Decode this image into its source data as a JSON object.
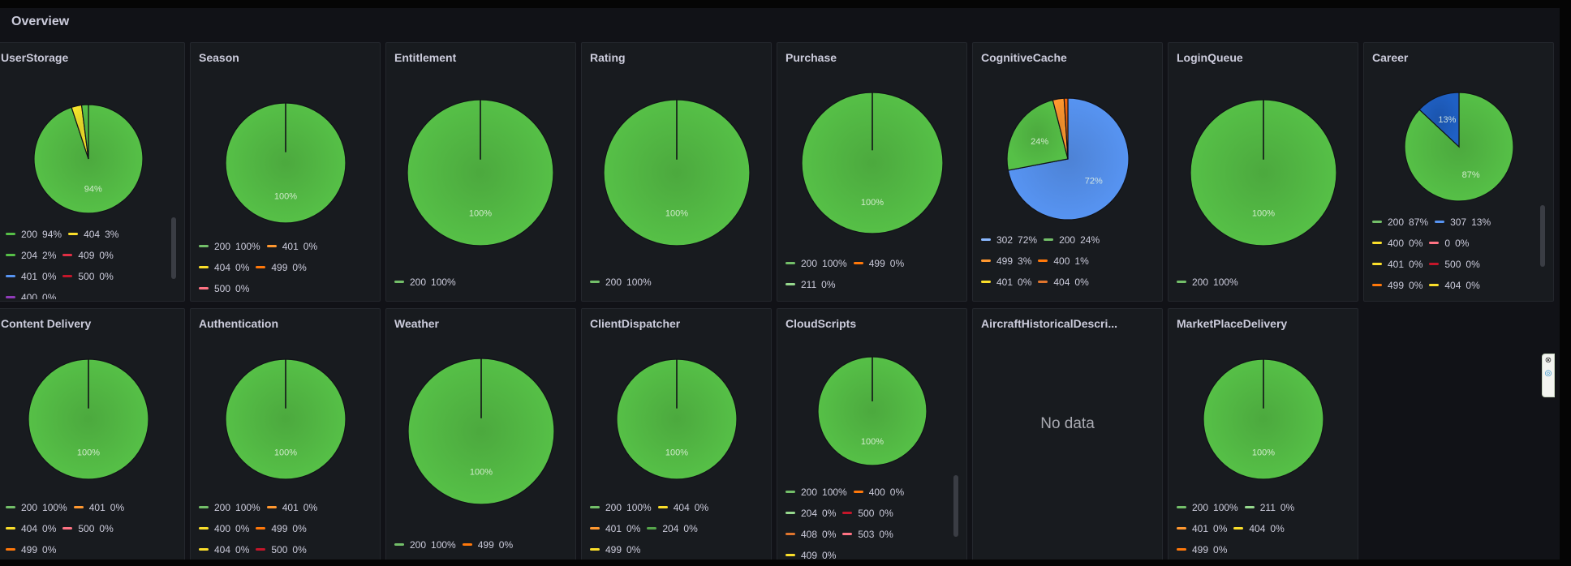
{
  "section": {
    "title": "Overview"
  },
  "no_data_text": "No data",
  "edge_widget": {
    "top": "⊗",
    "bottom": "◎"
  },
  "panels": [
    {
      "title": "UserStorage",
      "pie": [
        {
          "label": "200",
          "value": 94,
          "color": "#56c047",
          "slice_label": "94%"
        },
        {
          "label": "404",
          "value": 3,
          "color": "#f5e42c"
        },
        {
          "label": "204",
          "value": 2,
          "color": "#56c047"
        },
        {
          "label": "409",
          "value": 0,
          "color": "#e02f44"
        },
        {
          "label": "401",
          "value": 0,
          "color": "#5794f2"
        },
        {
          "label": "500",
          "value": 0,
          "color": "#c4162a"
        }
      ],
      "legend": [
        [
          {
            "label": "200",
            "value": "94%",
            "color": "#56c047"
          },
          {
            "label": "404",
            "value": "3%",
            "color": "#fade2a"
          }
        ],
        [
          {
            "label": "204",
            "value": "2%",
            "color": "#56c047"
          },
          {
            "label": "409",
            "value": "0%",
            "color": "#e02f44"
          }
        ],
        [
          {
            "label": "401",
            "value": "0%",
            "color": "#5794f2"
          },
          {
            "label": "500",
            "value": "0%",
            "color": "#c4162a"
          }
        ],
        [
          {
            "label": "400",
            "value": "0%",
            "color": "#8f3bb8"
          }
        ]
      ],
      "scrollbar": true
    },
    {
      "title": "Season",
      "pie": [
        {
          "label": "200",
          "value": 100,
          "color": "#56c047",
          "slice_label": "100%"
        },
        {
          "label": "401",
          "value": 0,
          "color": "#ff780a"
        }
      ],
      "legend": [
        [
          {
            "label": "200",
            "value": "100%",
            "color": "#73bf69"
          },
          {
            "label": "401",
            "value": "0%",
            "color": "#ff9830"
          }
        ],
        [
          {
            "label": "404",
            "value": "0%",
            "color": "#fade2a"
          },
          {
            "label": "499",
            "value": "0%",
            "color": "#ff780a"
          }
        ],
        [
          {
            "label": "500",
            "value": "0%",
            "color": "#ff7383"
          }
        ]
      ]
    },
    {
      "title": "Entitlement",
      "pie": [
        {
          "label": "200",
          "value": 100,
          "color": "#56c047",
          "slice_label": "100%"
        }
      ],
      "legend": [
        [
          {
            "label": "200",
            "value": "100%",
            "color": "#73bf69"
          }
        ]
      ]
    },
    {
      "title": "Rating",
      "pie": [
        {
          "label": "200",
          "value": 100,
          "color": "#56c047",
          "slice_label": "100%"
        }
      ],
      "legend": [
        [
          {
            "label": "200",
            "value": "100%",
            "color": "#73bf69"
          }
        ]
      ]
    },
    {
      "title": "Purchase",
      "pie": [
        {
          "label": "200",
          "value": 100,
          "color": "#56c047",
          "slice_label": "100%"
        },
        {
          "label": "499",
          "value": 0,
          "color": "#ff780a"
        }
      ],
      "legend": [
        [
          {
            "label": "200",
            "value": "100%",
            "color": "#73bf69"
          },
          {
            "label": "499",
            "value": "0%",
            "color": "#ff780a"
          }
        ],
        [
          {
            "label": "211",
            "value": "0%",
            "color": "#96d98d"
          }
        ]
      ]
    },
    {
      "title": "CognitiveCache",
      "pie": [
        {
          "label": "302",
          "value": 72,
          "color": "#5794f2",
          "slice_label": "72%"
        },
        {
          "label": "200",
          "value": 24,
          "color": "#56c047",
          "slice_label": "24%"
        },
        {
          "label": "499",
          "value": 3,
          "color": "#ff9830"
        },
        {
          "label": "400",
          "value": 1,
          "color": "#f2640a"
        }
      ],
      "legend": [
        [
          {
            "label": "302",
            "value": "72%",
            "color": "#8ab8ff"
          },
          {
            "label": "200",
            "value": "24%",
            "color": "#73bf69"
          }
        ],
        [
          {
            "label": "499",
            "value": "3%",
            "color": "#ff9830"
          },
          {
            "label": "400",
            "value": "1%",
            "color": "#ff780a"
          }
        ],
        [
          {
            "label": "401",
            "value": "0%",
            "color": "#fade2a"
          },
          {
            "label": "404",
            "value": "0%",
            "color": "#e0752d"
          }
        ]
      ]
    },
    {
      "title": "LoginQueue",
      "pie": [
        {
          "label": "200",
          "value": 100,
          "color": "#56c047",
          "slice_label": "100%"
        }
      ],
      "legend": [
        [
          {
            "label": "200",
            "value": "100%",
            "color": "#73bf69"
          }
        ]
      ]
    },
    {
      "title": "Career",
      "pie": [
        {
          "label": "200",
          "value": 87,
          "color": "#56c047",
          "slice_label": "87%"
        },
        {
          "label": "307",
          "value": 13,
          "color": "#1f60c4",
          "slice_label": "13%"
        }
      ],
      "legend": [
        [
          {
            "label": "200",
            "value": "87%",
            "color": "#73bf69"
          },
          {
            "label": "307",
            "value": "13%",
            "color": "#5794f2"
          }
        ],
        [
          {
            "label": "400",
            "value": "0%",
            "color": "#fade2a"
          },
          {
            "label": "0",
            "value": "0%",
            "color": "#ff7383"
          }
        ],
        [
          {
            "label": "401",
            "value": "0%",
            "color": "#fade2a"
          },
          {
            "label": "500",
            "value": "0%",
            "color": "#c4162a"
          }
        ],
        [
          {
            "label": "499",
            "value": "0%",
            "color": "#ff780a"
          },
          {
            "label": "404",
            "value": "0%",
            "color": "#fade2a"
          }
        ]
      ],
      "scrollbar": true
    },
    {
      "title": "Content Delivery",
      "pie": [
        {
          "label": "200",
          "value": 100,
          "color": "#56c047",
          "slice_label": "100%"
        },
        {
          "label": "401",
          "value": 0,
          "color": "#ff9830"
        }
      ],
      "legend": [
        [
          {
            "label": "200",
            "value": "100%",
            "color": "#73bf69"
          },
          {
            "label": "401",
            "value": "0%",
            "color": "#ff9830"
          }
        ],
        [
          {
            "label": "404",
            "value": "0%",
            "color": "#fade2a"
          },
          {
            "label": "500",
            "value": "0%",
            "color": "#ff7383"
          }
        ],
        [
          {
            "label": "499",
            "value": "0%",
            "color": "#ff780a"
          }
        ]
      ]
    },
    {
      "title": "Authentication",
      "pie": [
        {
          "label": "200",
          "value": 100,
          "color": "#56c047",
          "slice_label": "100%"
        },
        {
          "label": "401",
          "value": 0,
          "color": "#ff9830"
        }
      ],
      "legend": [
        [
          {
            "label": "200",
            "value": "100%",
            "color": "#73bf69"
          },
          {
            "label": "401",
            "value": "0%",
            "color": "#ff9830"
          }
        ],
        [
          {
            "label": "400",
            "value": "0%",
            "color": "#fade2a"
          },
          {
            "label": "499",
            "value": "0%",
            "color": "#ff780a"
          }
        ],
        [
          {
            "label": "404",
            "value": "0%",
            "color": "#fade2a"
          },
          {
            "label": "500",
            "value": "0%",
            "color": "#c4162a"
          }
        ]
      ]
    },
    {
      "title": "Weather",
      "pie": [
        {
          "label": "200",
          "value": 100,
          "color": "#56c047",
          "slice_label": "100%"
        },
        {
          "label": "499",
          "value": 0,
          "color": "#ff780a"
        }
      ],
      "legend": [
        [
          {
            "label": "200",
            "value": "100%",
            "color": "#73bf69"
          },
          {
            "label": "499",
            "value": "0%",
            "color": "#ff780a"
          }
        ]
      ]
    },
    {
      "title": "ClientDispatcher",
      "pie": [
        {
          "label": "200",
          "value": 100,
          "color": "#56c047",
          "slice_label": "100%"
        },
        {
          "label": "404",
          "value": 0,
          "color": "#fade2a"
        }
      ],
      "legend": [
        [
          {
            "label": "200",
            "value": "100%",
            "color": "#73bf69"
          },
          {
            "label": "404",
            "value": "0%",
            "color": "#fade2a"
          }
        ],
        [
          {
            "label": "401",
            "value": "0%",
            "color": "#ff9830"
          },
          {
            "label": "204",
            "value": "0%",
            "color": "#56a64b"
          }
        ],
        [
          {
            "label": "499",
            "value": "0%",
            "color": "#fade2a"
          }
        ]
      ]
    },
    {
      "title": "CloudScripts",
      "pie": [
        {
          "label": "200",
          "value": 100,
          "color": "#56c047",
          "slice_label": "100%"
        },
        {
          "label": "400",
          "value": 0,
          "color": "#ff780a"
        }
      ],
      "legend": [
        [
          {
            "label": "200",
            "value": "100%",
            "color": "#73bf69"
          },
          {
            "label": "400",
            "value": "0%",
            "color": "#ff780a"
          }
        ],
        [
          {
            "label": "204",
            "value": "0%",
            "color": "#96d98d"
          },
          {
            "label": "500",
            "value": "0%",
            "color": "#c4162a"
          }
        ],
        [
          {
            "label": "408",
            "value": "0%",
            "color": "#e0752d"
          },
          {
            "label": "503",
            "value": "0%",
            "color": "#ff7383"
          }
        ],
        [
          {
            "label": "409",
            "value": "0%",
            "color": "#fade2a"
          }
        ]
      ],
      "scrollbar": true
    },
    {
      "title": "AircraftHistoricalDescri...",
      "no_data": true
    },
    {
      "title": "MarketPlaceDelivery",
      "pie": [
        {
          "label": "200",
          "value": 100,
          "color": "#56c047",
          "slice_label": "100%"
        },
        {
          "label": "211",
          "value": 0,
          "color": "#96d98d"
        }
      ],
      "legend": [
        [
          {
            "label": "200",
            "value": "100%",
            "color": "#73bf69"
          },
          {
            "label": "211",
            "value": "0%",
            "color": "#96d98d"
          }
        ],
        [
          {
            "label": "401",
            "value": "0%",
            "color": "#ff9830"
          },
          {
            "label": "404",
            "value": "0%",
            "color": "#fade2a"
          }
        ],
        [
          {
            "label": "499",
            "value": "0%",
            "color": "#ff780a"
          }
        ]
      ]
    }
  ]
}
